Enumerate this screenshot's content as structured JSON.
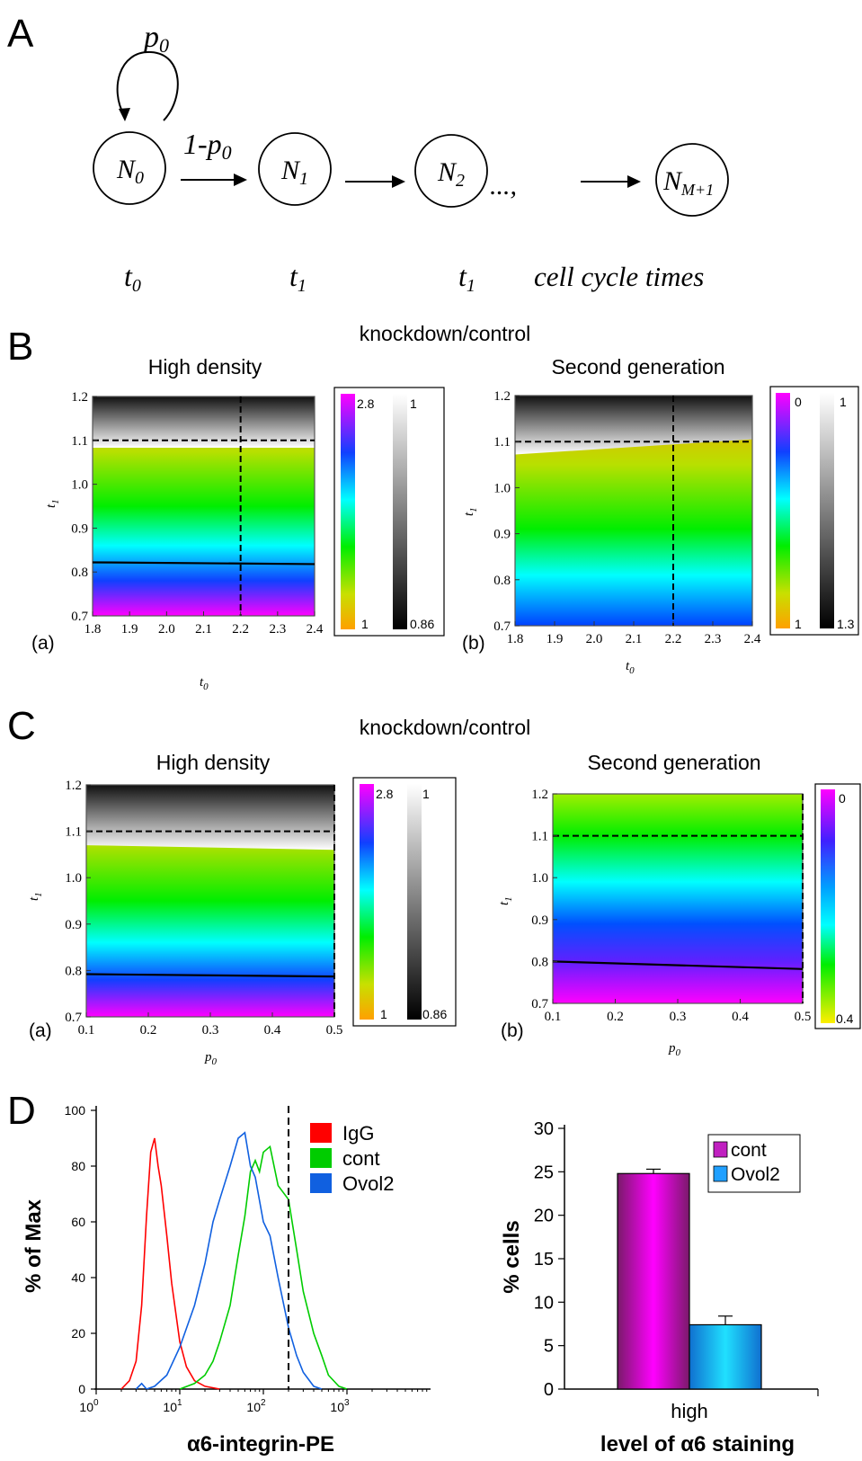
{
  "panels": {
    "a": "A",
    "b": "B",
    "c": "C",
    "d": "D"
  },
  "scheme": {
    "p0_label": "p",
    "p0_sub": "0",
    "arrow_label": "1-p",
    "arrow_sub": "0",
    "nodes": [
      {
        "main": "N",
        "sub": "0"
      },
      {
        "main": "N",
        "sub": "1"
      },
      {
        "main": "N",
        "sub": "2"
      },
      {
        "main": "N",
        "sub": "M+1"
      }
    ],
    "ellipsis": "...,",
    "times": [
      {
        "main": "t",
        "sub": "0"
      },
      {
        "main": "t",
        "sub": "1"
      },
      {
        "main": "t",
        "sub": "1"
      }
    ],
    "cell_cycle_label": "cell cycle times"
  },
  "colors": {
    "orange": "#ffa500",
    "green": "#00ee00",
    "cyan": "#00ffff",
    "blue": "#0044ff",
    "magenta": "#ff00ff",
    "red": "#ff0000",
    "hist_green": "#00cc00",
    "hist_blue": "#1060e0",
    "bar_cont": "#c020c0",
    "bar_ovol": "#20a0ff"
  },
  "chart_data": [
    {
      "id": "B-a",
      "type": "heatmap",
      "group_title": "knockdown/control",
      "title": "High density",
      "tag": "(a)",
      "xlabel": "t",
      "xlabel_sub": "0",
      "ylabel": "t",
      "ylabel_sub": "1",
      "xlim": [
        1.8,
        2.4
      ],
      "ylim": [
        0.7,
        1.2
      ],
      "xticks": [
        "1.8",
        "1.9",
        "2.0",
        "2.1",
        "2.2",
        "2.3",
        "2.4"
      ],
      "yticks": [
        "0.7",
        "0.8",
        "0.9",
        "1.0",
        "1.1",
        "1.2"
      ],
      "dashed_x": 2.2,
      "dashed_y": 1.1,
      "solid_line": [
        [
          1.8,
          0.822
        ],
        [
          2.4,
          0.818
        ]
      ],
      "colorbar_color": {
        "min_label": "1",
        "max_label": "2.8"
      },
      "colorbar_gray": {
        "min_label": "0.86",
        "max_label": "1"
      }
    },
    {
      "id": "B-b",
      "type": "heatmap",
      "title": "Second generation",
      "tag": "(b)",
      "xlabel": "t",
      "xlabel_sub": "0",
      "ylabel": "t",
      "ylabel_sub": "1",
      "xlim": [
        1.8,
        2.4
      ],
      "ylim": [
        0.7,
        1.2
      ],
      "xticks": [
        "1.8",
        "1.9",
        "2.0",
        "2.1",
        "2.2",
        "2.3",
        "2.4"
      ],
      "yticks": [
        "0.7",
        "0.8",
        "0.9",
        "1.0",
        "1.1",
        "1.2"
      ],
      "dashed_x": 2.2,
      "dashed_y": 1.1,
      "boundary_line": [
        [
          1.8,
          1.072
        ],
        [
          2.4,
          1.105
        ]
      ],
      "colorbar_color": {
        "min_label": "1",
        "max_label": "0"
      },
      "colorbar_gray": {
        "min_label": "1.3",
        "max_label": "1"
      }
    },
    {
      "id": "C-a",
      "type": "heatmap",
      "group_title": "knockdown/control",
      "title": "High density",
      "tag": "(a)",
      "xlabel": "p",
      "xlabel_sub": "0",
      "ylabel": "t",
      "ylabel_sub": "1",
      "xlim": [
        0.1,
        0.5
      ],
      "ylim": [
        0.7,
        1.2
      ],
      "xticks": [
        "0.1",
        "0.2",
        "0.3",
        "0.4",
        "0.5"
      ],
      "yticks": [
        "0.7",
        "0.8",
        "0.9",
        "1.0",
        "1.1",
        "1.2"
      ],
      "dashed_x": 0.5,
      "dashed_y": 1.1,
      "solid_line": [
        [
          0.1,
          0.792
        ],
        [
          0.5,
          0.787
        ]
      ],
      "boundary_line": [
        [
          0.1,
          1.07
        ],
        [
          0.5,
          1.06
        ]
      ],
      "colorbar_color": {
        "min_label": "1",
        "max_label": "2.8"
      },
      "colorbar_gray": {
        "min_label": "0.86",
        "max_label": "1"
      }
    },
    {
      "id": "C-b",
      "type": "heatmap",
      "title": "Second generation",
      "tag": "(b)",
      "xlabel": "p",
      "xlabel_sub": "0",
      "ylabel": "t",
      "ylabel_sub": "1",
      "xlim": [
        0.1,
        0.5
      ],
      "ylim": [
        0.7,
        1.2
      ],
      "xticks": [
        "0.1",
        "0.2",
        "0.3",
        "0.4",
        "0.5"
      ],
      "yticks": [
        "0.7",
        "0.8",
        "0.9",
        "1.0",
        "1.1",
        "1.2"
      ],
      "dashed_x": 0.5,
      "dashed_y": 1.1,
      "solid_line": [
        [
          0.1,
          0.8
        ],
        [
          0.5,
          0.782
        ]
      ],
      "colorbar_color": {
        "min_label": "0.4",
        "max_label": "0"
      }
    },
    {
      "id": "D-hist",
      "type": "line",
      "xlabel": "α6-integrin-PE",
      "ylabel": "% of Max",
      "xscale": "log",
      "xlim": [
        1,
        10000
      ],
      "ylim": [
        0,
        100
      ],
      "xticks": [
        {
          "base": "10",
          "exp": "0"
        },
        {
          "base": "10",
          "exp": "1"
        },
        {
          "base": "10",
          "exp": "2"
        },
        {
          "base": "10",
          "exp": "3"
        }
      ],
      "yticks": [
        "0",
        "20",
        "40",
        "60",
        "80",
        "100"
      ],
      "gate_x": 200,
      "legend_position": "top-right",
      "series": [
        {
          "name": "IgG",
          "x": [
            2,
            2.5,
            3,
            3.5,
            4,
            4.5,
            5,
            5.5,
            6,
            7,
            8,
            10,
            12,
            15,
            20,
            30
          ],
          "y": [
            0,
            3,
            10,
            30,
            62,
            85,
            90,
            80,
            73,
            55,
            38,
            17,
            8,
            3,
            1,
            0
          ]
        },
        {
          "name": "cont",
          "x": [
            10,
            15,
            20,
            25,
            30,
            40,
            50,
            60,
            70,
            80,
            90,
            100,
            120,
            150,
            200,
            250,
            300,
            400,
            500,
            600,
            800,
            1000
          ],
          "y": [
            0,
            2,
            5,
            10,
            17,
            30,
            48,
            62,
            78,
            82,
            78,
            85,
            87,
            73,
            68,
            50,
            35,
            20,
            12,
            5,
            1,
            0
          ]
        },
        {
          "name": "Ovol2",
          "x": [
            3,
            3.5,
            4,
            5,
            7,
            10,
            15,
            20,
            25,
            30,
            40,
            50,
            60,
            70,
            80,
            100,
            120,
            150,
            200,
            250,
            300,
            400,
            500
          ],
          "y": [
            0,
            2,
            0,
            1,
            5,
            15,
            30,
            45,
            60,
            68,
            80,
            90,
            92,
            80,
            76,
            60,
            55,
            40,
            22,
            12,
            6,
            1,
            0
          ]
        }
      ]
    },
    {
      "id": "D-bar",
      "type": "bar",
      "categories": [
        "high"
      ],
      "xlabel": "level of α6 staining",
      "ylabel": "% cells",
      "ylim": [
        0,
        30
      ],
      "yticks": [
        "0",
        "5",
        "10",
        "15",
        "20",
        "25",
        "30"
      ],
      "legend_position": "top-right",
      "series": [
        {
          "name": "cont",
          "values": [
            24.8
          ],
          "error": [
            0.5
          ]
        },
        {
          "name": "Ovol2",
          "values": [
            7.4
          ],
          "error": [
            1.0
          ]
        }
      ]
    }
  ]
}
